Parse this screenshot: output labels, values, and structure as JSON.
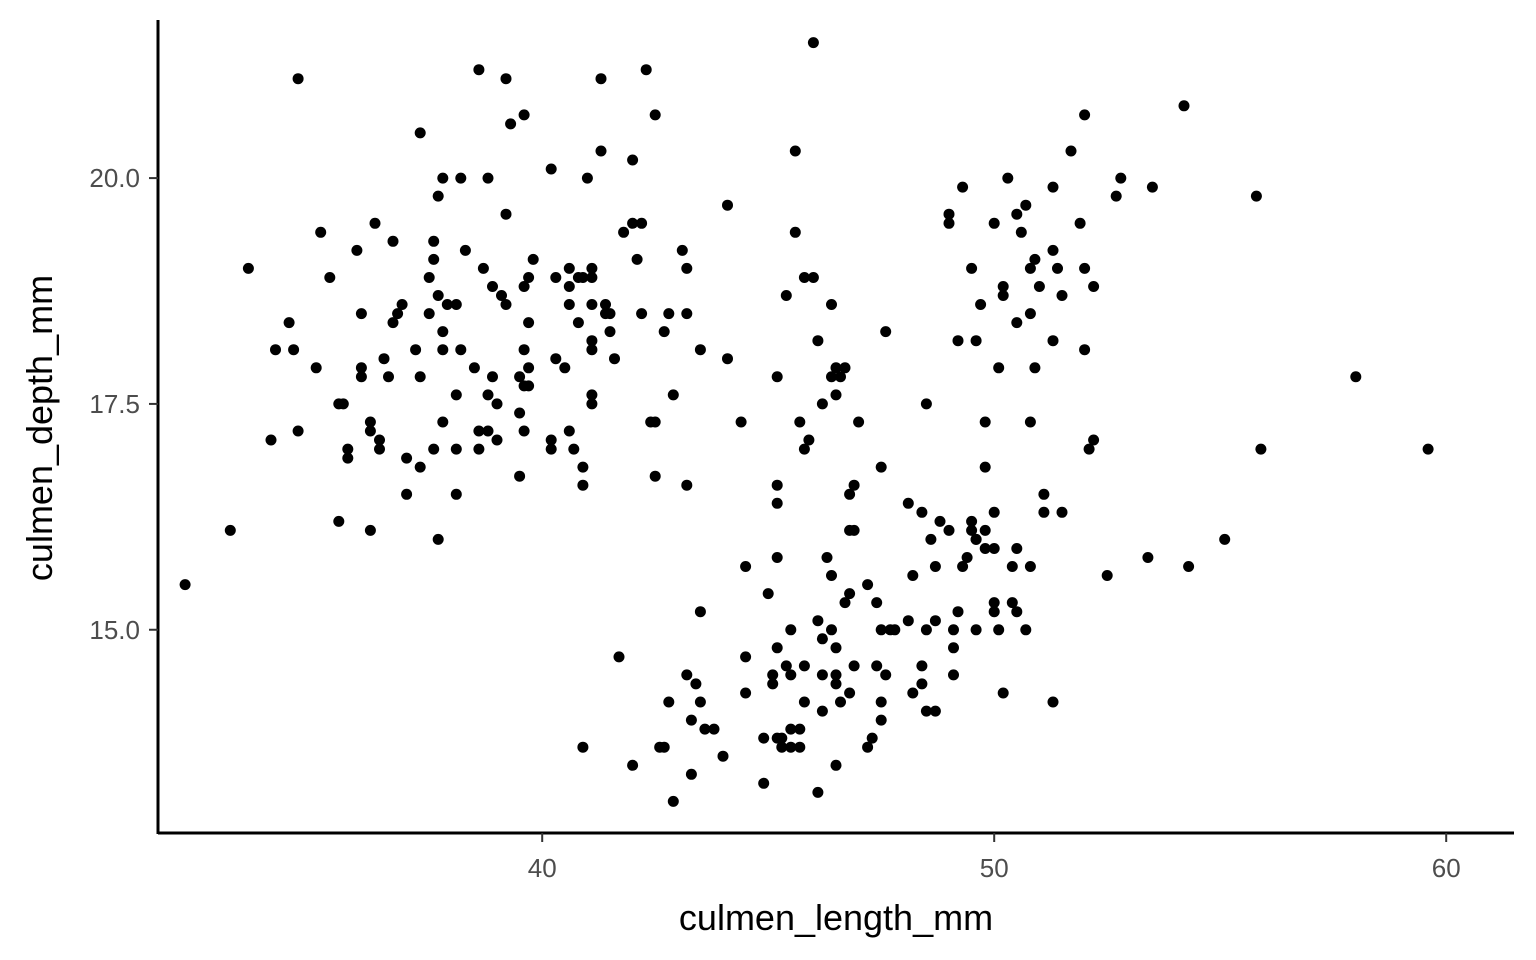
{
  "chart_data": {
    "type": "scatter",
    "title": "",
    "xlabel": "culmen_length_mm",
    "ylabel": "culmen_depth_mm",
    "xlim": [
      31.5,
      61.5
    ],
    "ylim": [
      12.75,
      21.75
    ],
    "xticks": [
      40,
      50,
      60
    ],
    "xtick_labels": [
      "40",
      "50",
      "60"
    ],
    "yticks": [
      15.0,
      17.5,
      20.0
    ],
    "ytick_labels": [
      "15.0",
      "17.5",
      "20.0"
    ],
    "grid": false,
    "legend": "none",
    "point_color": "#000000",
    "points": [
      [
        32.1,
        15.5
      ],
      [
        33.1,
        16.1
      ],
      [
        33.5,
        19.0
      ],
      [
        34.0,
        17.1
      ],
      [
        34.1,
        18.1
      ],
      [
        34.4,
        18.4
      ],
      [
        34.5,
        18.1
      ],
      [
        34.6,
        21.1
      ],
      [
        34.6,
        17.2
      ],
      [
        35.0,
        17.9
      ],
      [
        35.1,
        19.4
      ],
      [
        35.3,
        18.9
      ],
      [
        35.5,
        16.2
      ],
      [
        35.5,
        17.5
      ],
      [
        35.6,
        17.5
      ],
      [
        35.7,
        16.9
      ],
      [
        35.7,
        17.0
      ],
      [
        35.9,
        19.2
      ],
      [
        36.0,
        17.8
      ],
      [
        36.0,
        17.9
      ],
      [
        36.0,
        18.5
      ],
      [
        36.2,
        17.2
      ],
      [
        36.2,
        16.1
      ],
      [
        36.2,
        17.3
      ],
      [
        36.3,
        19.5
      ],
      [
        36.4,
        17.1
      ],
      [
        36.4,
        17.0
      ],
      [
        36.5,
        18.0
      ],
      [
        36.6,
        17.8
      ],
      [
        36.7,
        18.4
      ],
      [
        36.7,
        19.3
      ],
      [
        36.8,
        18.5
      ],
      [
        36.9,
        18.6
      ],
      [
        37.0,
        16.9
      ],
      [
        37.0,
        16.5
      ],
      [
        37.2,
        18.1
      ],
      [
        37.3,
        20.5
      ],
      [
        37.3,
        17.8
      ],
      [
        37.3,
        16.8
      ],
      [
        37.5,
        18.9
      ],
      [
        37.5,
        18.5
      ],
      [
        37.6,
        19.1
      ],
      [
        37.6,
        19.3
      ],
      [
        37.6,
        17.0
      ],
      [
        37.7,
        18.7
      ],
      [
        37.7,
        19.8
      ],
      [
        37.7,
        16.0
      ],
      [
        37.8,
        17.3
      ],
      [
        37.8,
        18.3
      ],
      [
        37.8,
        20.0
      ],
      [
        37.8,
        18.1
      ],
      [
        37.9,
        18.6
      ],
      [
        38.1,
        18.6
      ],
      [
        38.1,
        17.6
      ],
      [
        38.1,
        17.0
      ],
      [
        38.1,
        16.5
      ],
      [
        38.2,
        18.1
      ],
      [
        38.2,
        20.0
      ],
      [
        38.3,
        19.2
      ],
      [
        38.5,
        17.9
      ],
      [
        38.6,
        21.2
      ],
      [
        38.6,
        17.2
      ],
      [
        38.6,
        17.0
      ],
      [
        38.7,
        19.0
      ],
      [
        38.8,
        17.2
      ],
      [
        38.8,
        17.6
      ],
      [
        38.8,
        20.0
      ],
      [
        38.9,
        18.8
      ],
      [
        38.9,
        17.8
      ],
      [
        39.0,
        17.5
      ],
      [
        39.0,
        17.1
      ],
      [
        39.1,
        18.7
      ],
      [
        39.2,
        21.1
      ],
      [
        39.2,
        19.6
      ],
      [
        39.2,
        18.6
      ],
      [
        39.3,
        20.6
      ],
      [
        39.5,
        16.7
      ],
      [
        39.5,
        17.4
      ],
      [
        39.5,
        17.8
      ],
      [
        39.6,
        20.7
      ],
      [
        39.6,
        17.7
      ],
      [
        39.6,
        18.8
      ],
      [
        39.6,
        17.2
      ],
      [
        39.6,
        18.1
      ],
      [
        39.7,
        17.7
      ],
      [
        39.7,
        17.9
      ],
      [
        39.7,
        18.9
      ],
      [
        39.7,
        18.4
      ],
      [
        39.8,
        19.1
      ],
      [
        40.2,
        17.1
      ],
      [
        40.2,
        17.0
      ],
      [
        40.2,
        20.1
      ],
      [
        40.3,
        18.0
      ],
      [
        40.3,
        18.9
      ],
      [
        40.5,
        17.9
      ],
      [
        40.6,
        17.2
      ],
      [
        40.6,
        18.6
      ],
      [
        40.6,
        18.8
      ],
      [
        40.6,
        19.0
      ],
      [
        40.7,
        17.0
      ],
      [
        40.8,
        18.4
      ],
      [
        40.8,
        18.9
      ],
      [
        40.9,
        18.9
      ],
      [
        40.9,
        16.6
      ],
      [
        40.9,
        16.8
      ],
      [
        41.0,
        20.0
      ],
      [
        41.1,
        17.6
      ],
      [
        41.1,
        17.5
      ],
      [
        41.1,
        18.6
      ],
      [
        41.1,
        18.2
      ],
      [
        41.1,
        19.0
      ],
      [
        41.1,
        18.1
      ],
      [
        41.1,
        18.9
      ],
      [
        41.3,
        21.1
      ],
      [
        41.3,
        20.3
      ],
      [
        41.4,
        18.6
      ],
      [
        41.4,
        18.5
      ],
      [
        41.5,
        18.5
      ],
      [
        41.5,
        18.3
      ],
      [
        41.6,
        18.0
      ],
      [
        41.8,
        19.4
      ],
      [
        42.0,
        19.5
      ],
      [
        42.0,
        20.2
      ],
      [
        42.1,
        19.1
      ],
      [
        42.2,
        18.5
      ],
      [
        42.2,
        19.5
      ],
      [
        42.3,
        21.2
      ],
      [
        42.4,
        17.3
      ],
      [
        42.5,
        16.7
      ],
      [
        42.5,
        17.3
      ],
      [
        42.5,
        20.7
      ],
      [
        42.7,
        18.3
      ],
      [
        42.8,
        18.5
      ],
      [
        42.9,
        17.6
      ],
      [
        43.1,
        19.2
      ],
      [
        43.2,
        18.5
      ],
      [
        43.2,
        16.6
      ],
      [
        43.2,
        19.0
      ],
      [
        43.5,
        18.1
      ],
      [
        44.1,
        19.7
      ],
      [
        44.1,
        18.0
      ],
      [
        45.4,
        18.7
      ],
      [
        45.6,
        19.4
      ],
      [
        45.6,
        20.3
      ],
      [
        45.8,
        18.9
      ],
      [
        45.8,
        17.0
      ],
      [
        46.0,
        21.5
      ],
      [
        46.1,
        18.2
      ],
      [
        46.2,
        17.5
      ],
      [
        46.4,
        17.8
      ],
      [
        46.4,
        18.6
      ],
      [
        46.5,
        17.9
      ],
      [
        46.6,
        17.8
      ],
      [
        46.7,
        17.9
      ],
      [
        46.9,
        16.6
      ],
      [
        47.0,
        17.3
      ],
      [
        47.5,
        16.8
      ],
      [
        47.6,
        18.3
      ],
      [
        45.2,
        17.8
      ],
      [
        45.7,
        17.3
      ],
      [
        45.9,
        17.1
      ],
      [
        46.0,
        18.9
      ],
      [
        46.8,
        16.5
      ],
      [
        46.9,
        16.1
      ],
      [
        46.5,
        17.6
      ],
      [
        49.0,
        19.5
      ],
      [
        49.0,
        19.6
      ],
      [
        49.2,
        18.2
      ],
      [
        49.3,
        19.9
      ],
      [
        49.5,
        19.0
      ],
      [
        49.6,
        18.2
      ],
      [
        49.7,
        18.6
      ],
      [
        49.8,
        17.3
      ],
      [
        49.8,
        16.8
      ],
      [
        50.0,
        19.5
      ],
      [
        50.1,
        17.9
      ],
      [
        50.2,
        18.8
      ],
      [
        50.2,
        18.7
      ],
      [
        50.3,
        20.0
      ],
      [
        50.5,
        19.6
      ],
      [
        50.5,
        18.4
      ],
      [
        50.6,
        19.4
      ],
      [
        50.7,
        19.7
      ],
      [
        50.8,
        18.5
      ],
      [
        50.8,
        19.0
      ],
      [
        50.9,
        17.9
      ],
      [
        50.9,
        19.1
      ],
      [
        51.0,
        18.8
      ],
      [
        51.3,
        19.2
      ],
      [
        51.3,
        18.2
      ],
      [
        51.3,
        19.9
      ],
      [
        51.4,
        19.0
      ],
      [
        51.5,
        18.7
      ],
      [
        51.7,
        20.3
      ],
      [
        51.9,
        19.5
      ],
      [
        52.0,
        18.1
      ],
      [
        52.0,
        19.0
      ],
      [
        52.0,
        20.7
      ],
      [
        52.2,
        18.8
      ],
      [
        52.7,
        19.8
      ],
      [
        52.8,
        20.0
      ],
      [
        53.5,
        19.9
      ],
      [
        54.2,
        20.8
      ],
      [
        55.8,
        19.8
      ],
      [
        58.0,
        17.8
      ],
      [
        50.8,
        17.3
      ],
      [
        52.1,
        17.0
      ],
      [
        52.2,
        17.1
      ],
      [
        40.9,
        13.7
      ],
      [
        41.7,
        14.7
      ],
      [
        42.0,
        13.5
      ],
      [
        42.6,
        13.7
      ],
      [
        42.7,
        13.7
      ],
      [
        42.8,
        14.2
      ],
      [
        42.9,
        13.1
      ],
      [
        43.2,
        14.5
      ],
      [
        43.3,
        14.0
      ],
      [
        43.3,
        13.4
      ],
      [
        43.4,
        14.4
      ],
      [
        43.5,
        14.2
      ],
      [
        43.5,
        15.2
      ],
      [
        43.6,
        13.9
      ],
      [
        43.8,
        13.9
      ],
      [
        44.0,
        13.6
      ],
      [
        44.4,
        17.3
      ],
      [
        44.5,
        14.3
      ],
      [
        44.5,
        15.7
      ],
      [
        44.5,
        14.7
      ],
      [
        44.9,
        13.3
      ],
      [
        44.9,
        13.8
      ],
      [
        45.0,
        15.4
      ],
      [
        45.1,
        14.5
      ],
      [
        45.1,
        14.4
      ],
      [
        45.2,
        13.8
      ],
      [
        45.2,
        14.8
      ],
      [
        45.2,
        15.8
      ],
      [
        45.2,
        16.4
      ],
      [
        45.2,
        16.6
      ],
      [
        45.3,
        13.8
      ],
      [
        45.3,
        13.7
      ],
      [
        45.4,
        14.6
      ],
      [
        45.5,
        13.7
      ],
      [
        45.5,
        13.9
      ],
      [
        45.5,
        14.5
      ],
      [
        45.5,
        15.0
      ],
      [
        45.7,
        13.9
      ],
      [
        45.7,
        13.7
      ],
      [
        45.8,
        14.6
      ],
      [
        45.8,
        14.2
      ],
      [
        46.1,
        13.2
      ],
      [
        46.1,
        15.1
      ],
      [
        46.2,
        14.1
      ],
      [
        46.2,
        14.5
      ],
      [
        46.2,
        14.9
      ],
      [
        46.3,
        15.8
      ],
      [
        46.4,
        15.0
      ],
      [
        46.4,
        15.6
      ],
      [
        46.5,
        14.5
      ],
      [
        46.5,
        13.5
      ],
      [
        46.5,
        14.8
      ],
      [
        46.5,
        14.4
      ],
      [
        46.6,
        14.2
      ],
      [
        46.7,
        15.3
      ],
      [
        46.8,
        14.3
      ],
      [
        46.8,
        15.4
      ],
      [
        46.8,
        16.1
      ],
      [
        46.9,
        14.6
      ],
      [
        47.2,
        13.7
      ],
      [
        47.2,
        15.5
      ],
      [
        47.3,
        13.8
      ],
      [
        47.4,
        14.6
      ],
      [
        47.4,
        15.3
      ],
      [
        47.5,
        14.2
      ],
      [
        47.5,
        14.0
      ],
      [
        47.5,
        15.0
      ],
      [
        47.6,
        14.5
      ],
      [
        47.7,
        15.0
      ],
      [
        47.8,
        15.0
      ],
      [
        48.1,
        15.1
      ],
      [
        48.1,
        16.4
      ],
      [
        48.2,
        14.3
      ],
      [
        48.2,
        15.6
      ],
      [
        48.4,
        14.4
      ],
      [
        48.4,
        14.6
      ],
      [
        48.4,
        16.3
      ],
      [
        48.5,
        14.1
      ],
      [
        48.5,
        15.0
      ],
      [
        48.5,
        17.5
      ],
      [
        48.6,
        16.0
      ],
      [
        48.7,
        14.1
      ],
      [
        48.7,
        15.1
      ],
      [
        48.7,
        15.7
      ],
      [
        48.8,
        16.2
      ],
      [
        49.0,
        16.1
      ],
      [
        49.1,
        14.5
      ],
      [
        49.1,
        14.8
      ],
      [
        49.1,
        15.0
      ],
      [
        49.2,
        15.2
      ],
      [
        49.3,
        15.7
      ],
      [
        49.4,
        15.8
      ],
      [
        49.5,
        16.1
      ],
      [
        49.5,
        16.2
      ],
      [
        49.6,
        16.0
      ],
      [
        49.6,
        15.0
      ],
      [
        49.6,
        16.0
      ],
      [
        49.8,
        15.9
      ],
      [
        49.8,
        16.1
      ],
      [
        50.0,
        15.2
      ],
      [
        50.0,
        15.9
      ],
      [
        50.0,
        16.3
      ],
      [
        50.0,
        15.3
      ],
      [
        50.1,
        15.0
      ],
      [
        50.2,
        14.3
      ],
      [
        50.4,
        15.3
      ],
      [
        50.4,
        15.7
      ],
      [
        50.5,
        15.9
      ],
      [
        50.5,
        15.2
      ],
      [
        50.7,
        15.0
      ],
      [
        50.8,
        15.7
      ],
      [
        51.1,
        16.3
      ],
      [
        51.1,
        16.5
      ],
      [
        51.3,
        14.2
      ],
      [
        51.5,
        16.3
      ],
      [
        52.5,
        15.6
      ],
      [
        53.4,
        15.8
      ],
      [
        54.3,
        15.7
      ],
      [
        55.1,
        16.0
      ],
      [
        55.9,
        17.0
      ],
      [
        59.6,
        17.0
      ]
    ]
  }
}
